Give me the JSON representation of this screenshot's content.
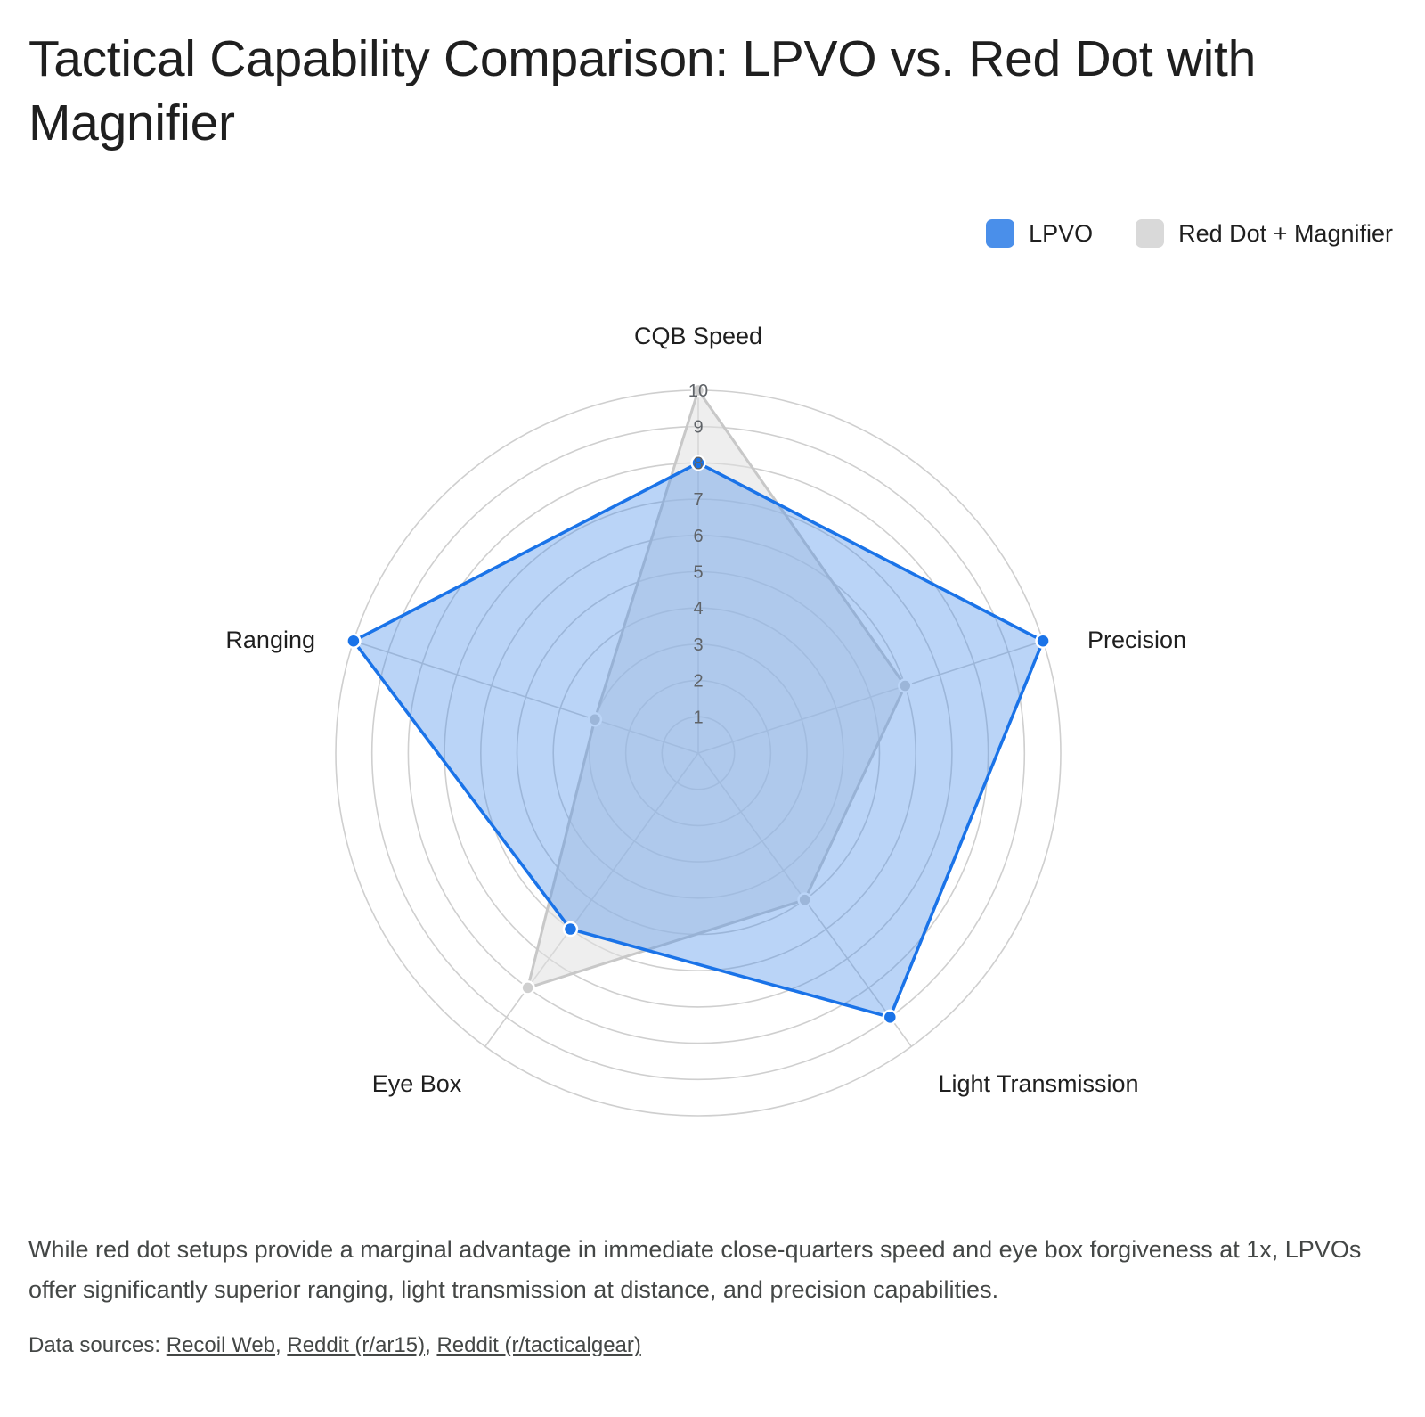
{
  "page": {
    "title": "Tactical Capability Comparison: LPVO vs. Red Dot with Magnifier",
    "caption": "While red dot setups provide a marginal advantage in immediate close-quarters speed and eye box forgiveness at 1x, LPVOs offer significantly superior ranging, light transmission at distance, and precision capabilities.",
    "sources_label": "Data sources:",
    "sources": [
      "Recoil Web",
      "Reddit (r/ar15)",
      "Reddit (r/tacticalgear)"
    ]
  },
  "legend": [
    {
      "name": "LPVO",
      "color": "#4a8fea"
    },
    {
      "name": "Red Dot + Magnifier",
      "color": "#d9d9d9"
    }
  ],
  "chart_data": {
    "type": "radar",
    "title": "Tactical Capability Comparison: LPVO vs. Red Dot with Magnifier",
    "axes": [
      "CQB Speed",
      "Precision",
      "Light Transmission",
      "Eye Box",
      "Ranging"
    ],
    "rlim": [
      0,
      10
    ],
    "ticks": [
      "1",
      "2",
      "3",
      "4",
      "5",
      "6",
      "7",
      "8",
      "9",
      "10"
    ],
    "grid": true,
    "legend_position": "top-right",
    "series": [
      {
        "name": "LPVO",
        "values": [
          8,
          10,
          9,
          6,
          10
        ],
        "line_color": "#1a73e8",
        "fill_color": "#4a8fea"
      },
      {
        "name": "Red Dot + Magnifier",
        "values": [
          10,
          6,
          5,
          8,
          3
        ],
        "line_color": "#c8c8c8",
        "fill_color": "#e0e0e0"
      }
    ]
  }
}
